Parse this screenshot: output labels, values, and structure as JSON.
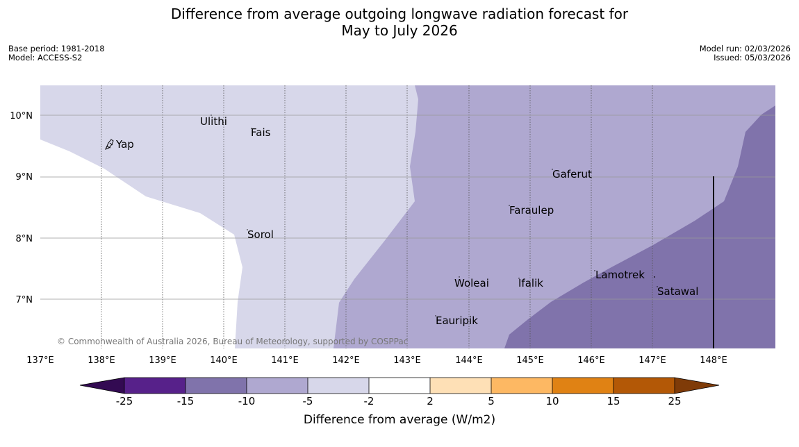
{
  "title": {
    "line1": "Difference from average outgoing longwave radiation forecast for",
    "line2": "May to July 2026"
  },
  "meta_left": {
    "base_period": "Base period: 1981-2018",
    "model": "Model: ACCESS-S2"
  },
  "meta_right": {
    "model_run": "Model run: 02/03/2026",
    "issued": "Issued: 05/03/2026"
  },
  "colors": {
    "band_m15_m10": "#8073ab",
    "band_m10_m5": "#afa8d0",
    "band_m5_m2": "#d7d7ea",
    "neutral": "#ffffff",
    "cb_lt_m25": "#330a52",
    "cb_m25_m15": "#57218a",
    "cb_m15_m10": "#8073ab",
    "cb_m10_m5": "#afa8d0",
    "cb_m5_m2": "#d7d7ea",
    "cb_m2_2": "#ffffff",
    "cb_2_5": "#fee0b6",
    "cb_5_10": "#fdb863",
    "cb_10_15": "#e08214",
    "cb_15_25": "#b35806",
    "cb_gt_25": "#7f3b08"
  },
  "lon_labels": [
    "137°E",
    "138°E",
    "139°E",
    "140°E",
    "141°E",
    "142°E",
    "143°E",
    "144°E",
    "145°E",
    "146°E",
    "147°E",
    "148°E"
  ],
  "lat_labels": [
    "10°N",
    "9°N",
    "8°N",
    "7°N"
  ],
  "places": [
    {
      "name": "Ulithi"
    },
    {
      "name": "Fais"
    },
    {
      "name": "Yap"
    },
    {
      "name": "Gaferut"
    },
    {
      "name": "Faraulep"
    },
    {
      "name": "Sorol"
    },
    {
      "name": "Lamotrek"
    },
    {
      "name": "Woleai"
    },
    {
      "name": "Ifalik"
    },
    {
      "name": "Satawal"
    },
    {
      "name": "Eauripik"
    }
  ],
  "credit": "© Commonwealth of Australia 2026, Bureau of Meteorology, supported by COSPPac",
  "colorbar": {
    "ticks": [
      "-25",
      "-15",
      "-10",
      "-5",
      "-2",
      "2",
      "5",
      "10",
      "15",
      "25"
    ],
    "label": "Difference from average (W/m2)"
  }
}
